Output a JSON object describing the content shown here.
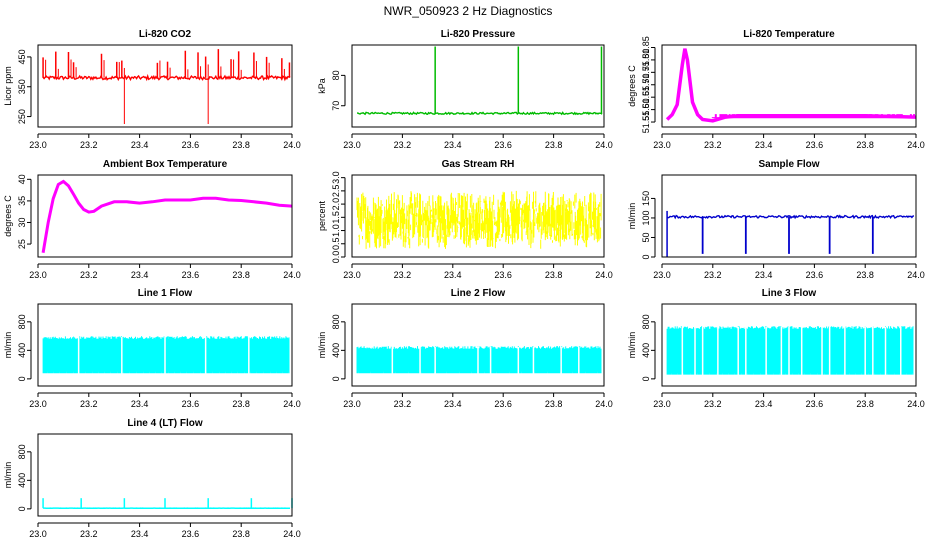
{
  "page_title": "NWR_050923  2 Hz Diagnostics",
  "chart_data": [
    {
      "type": "line",
      "title": "Li-820 CO2",
      "ylabel": "Licor ppm",
      "xlim": [
        23.0,
        24.0
      ],
      "ylim": [
        215,
        490
      ],
      "yticks": [
        250,
        350,
        450
      ],
      "y_tick_labels": [
        "250",
        "350",
        "450"
      ],
      "xticks": [
        23.0,
        23.2,
        23.4,
        23.6,
        23.8,
        24.0
      ],
      "x_tick_labels": [
        "23.0",
        "23.2",
        "23.4",
        "23.6",
        "23.8",
        "24.0"
      ],
      "color": "#ff0000",
      "baseline": 380,
      "spikes_up": [
        23.02,
        23.07,
        23.12,
        23.14,
        23.25,
        23.31,
        23.33,
        23.47,
        23.51,
        23.58,
        23.63,
        23.66,
        23.71,
        23.76,
        23.79,
        23.85,
        23.9,
        23.96,
        23.99
      ],
      "spikes_down": [
        23.34,
        23.67
      ],
      "spike_top": 480,
      "spike_bottom": 225
    },
    {
      "type": "line",
      "title": "Li-820 Pressure",
      "ylabel": "kPa",
      "xlim": [
        23.0,
        24.0
      ],
      "ylim": [
        63,
        90
      ],
      "yticks": [
        70,
        80
      ],
      "y_tick_labels": [
        "70",
        "80"
      ],
      "xticks": [
        23.0,
        23.2,
        23.4,
        23.6,
        23.8,
        24.0
      ],
      "x_tick_labels": [
        "23.0",
        "23.2",
        "23.4",
        "23.6",
        "23.8",
        "24.0"
      ],
      "color": "#00bb00",
      "baseline": 67.5,
      "spikes_up": [
        23.33,
        23.66,
        23.99
      ],
      "spike_top": 89.5
    },
    {
      "type": "line",
      "title": "Li-820 Temperature",
      "ylabel": "degrees C",
      "xlim": [
        23.0,
        24.0
      ],
      "ylim": [
        51.53,
        51.86
      ],
      "yticks": [
        51.55,
        51.6,
        51.65,
        51.7,
        51.75,
        51.8,
        51.85
      ],
      "y_tick_labels": [
        "51.55",
        "51.60",
        "51.65",
        "51.70",
        "51.75",
        "51.80",
        "51.85"
      ],
      "xticks": [
        23.0,
        23.2,
        23.4,
        23.6,
        23.8,
        24.0
      ],
      "x_tick_labels": [
        "23.0",
        "23.2",
        "23.4",
        "23.6",
        "23.8",
        "24.0"
      ],
      "color": "#ff00ff",
      "x": [
        23.02,
        23.04,
        23.06,
        23.08,
        23.09,
        23.1,
        23.12,
        23.14,
        23.16,
        23.2,
        23.25,
        23.3,
        23.4,
        23.6,
        23.8,
        24.0
      ],
      "y": [
        51.56,
        51.58,
        51.62,
        51.78,
        51.845,
        51.8,
        51.63,
        51.58,
        51.56,
        51.555,
        51.57,
        51.575,
        51.575,
        51.575,
        51.575,
        51.57
      ]
    },
    {
      "type": "line",
      "title": "Ambient Box Temperature",
      "ylabel": "degrees C",
      "xlim": [
        23.0,
        24.0
      ],
      "ylim": [
        22,
        41
      ],
      "yticks": [
        25,
        30,
        35,
        40
      ],
      "y_tick_labels": [
        "25",
        "30",
        "35",
        "40"
      ],
      "xticks": [
        23.0,
        23.2,
        23.4,
        23.6,
        23.8,
        24.0
      ],
      "x_tick_labels": [
        "23.0",
        "23.2",
        "23.4",
        "23.6",
        "23.8",
        "24.0"
      ],
      "color": "#ff00ff",
      "x": [
        23.02,
        23.04,
        23.06,
        23.08,
        23.1,
        23.12,
        23.14,
        23.16,
        23.18,
        23.2,
        23.22,
        23.25,
        23.3,
        23.35,
        23.4,
        23.45,
        23.5,
        23.55,
        23.6,
        23.65,
        23.7,
        23.75,
        23.8,
        23.85,
        23.9,
        23.95,
        24.0
      ],
      "y": [
        23,
        30,
        35.5,
        38.8,
        39.5,
        38.5,
        36.5,
        34.5,
        33,
        32.4,
        32.6,
        33.8,
        34.8,
        34.8,
        34.5,
        34.8,
        35.2,
        35.2,
        35.2,
        35.6,
        35.6,
        35.2,
        35.1,
        34.8,
        34.5,
        34,
        33.8
      ]
    },
    {
      "type": "line",
      "title": "Gas Stream RH",
      "ylabel": "percent",
      "xlim": [
        23.0,
        24.0
      ],
      "ylim": [
        0,
        3.1
      ],
      "yticks": [
        0,
        0.5,
        1.0,
        1.5,
        2.0,
        2.5,
        3.0
      ],
      "y_tick_labels": [
        "0.0",
        "0.5",
        "1.0",
        "1.5",
        "2.0",
        "2.5",
        "3.0"
      ],
      "xticks": [
        23.0,
        23.2,
        23.4,
        23.6,
        23.8,
        24.0
      ],
      "x_tick_labels": [
        "23.0",
        "23.2",
        "23.4",
        "23.6",
        "23.8",
        "24.0"
      ],
      "color": "#ffff00",
      "center": 1.4,
      "spread": 1.1
    },
    {
      "type": "line",
      "title": "Sample Flow",
      "ylabel": "ml/min",
      "xlim": [
        23.0,
        24.0
      ],
      "ylim": [
        0,
        210
      ],
      "yticks": [
        0,
        50,
        100,
        150
      ],
      "y_tick_labels": [
        "0",
        "50",
        "100",
        "150"
      ],
      "xticks": [
        23.0,
        23.2,
        23.4,
        23.6,
        23.8,
        24.0
      ],
      "x_tick_labels": [
        "23.0",
        "23.2",
        "23.4",
        "23.6",
        "23.8",
        "24.0"
      ],
      "color": "#0000cc",
      "baseline": 103,
      "drops": [
        23.16,
        23.33,
        23.5,
        23.66,
        23.83
      ],
      "drop_bottom": 8
    },
    {
      "type": "line",
      "title": "Line 1 Flow",
      "ylabel": "ml/min",
      "xlim": [
        23.0,
        24.0
      ],
      "ylim": [
        -100,
        1050
      ],
      "yticks": [
        0,
        400,
        800
      ],
      "y_tick_labels": [
        "0",
        "400",
        "800"
      ],
      "xticks": [
        23.0,
        23.2,
        23.4,
        23.6,
        23.8,
        24.0
      ],
      "x_tick_labels": [
        "23.0",
        "23.2",
        "23.4",
        "23.6",
        "23.8",
        "24.0"
      ],
      "color": "#00ffff",
      "band_low": 100,
      "band_high": 560,
      "gaps": [
        23.16,
        23.33,
        23.5,
        23.66,
        23.83
      ]
    },
    {
      "type": "line",
      "title": "Line 2 Flow",
      "ylabel": "ml/min",
      "xlim": [
        23.0,
        24.0
      ],
      "ylim": [
        -100,
        1050
      ],
      "yticks": [
        0,
        400,
        800
      ],
      "y_tick_labels": [
        "0",
        "400",
        "800"
      ],
      "xticks": [
        23.0,
        23.2,
        23.4,
        23.6,
        23.8,
        24.0
      ],
      "x_tick_labels": [
        "23.0",
        "23.2",
        "23.4",
        "23.6",
        "23.8",
        "24.0"
      ],
      "color": "#00ffff",
      "band_low": 100,
      "band_high": 420,
      "gaps": [
        23.16,
        23.27,
        23.33,
        23.5,
        23.55,
        23.66,
        23.72,
        23.83,
        23.9
      ]
    },
    {
      "type": "line",
      "title": "Line 3 Flow",
      "ylabel": "ml/min",
      "xlim": [
        23.0,
        24.0
      ],
      "ylim": [
        -100,
        1050
      ],
      "yticks": [
        0,
        400,
        800
      ],
      "y_tick_labels": [
        "0",
        "400",
        "800"
      ],
      "xticks": [
        23.0,
        23.2,
        23.4,
        23.6,
        23.8,
        24.0
      ],
      "x_tick_labels": [
        "23.0",
        "23.2",
        "23.4",
        "23.6",
        "23.8",
        "24.0"
      ],
      "color": "#00ffff",
      "band_low": 80,
      "band_high": 700,
      "gaps": [
        23.08,
        23.13,
        23.16,
        23.22,
        23.3,
        23.33,
        23.41,
        23.47,
        23.5,
        23.55,
        23.63,
        23.66,
        23.72,
        23.8,
        23.83,
        23.88,
        23.94
      ]
    },
    {
      "type": "line",
      "title": "Line 4 (LT) Flow",
      "ylabel": "ml/min",
      "xlim": [
        23.0,
        24.0
      ],
      "ylim": [
        -100,
        1050
      ],
      "yticks": [
        0,
        400,
        800
      ],
      "y_tick_labels": [
        "0",
        "400",
        "800"
      ],
      "xticks": [
        23.0,
        23.2,
        23.4,
        23.6,
        23.8,
        24.0
      ],
      "x_tick_labels": [
        "23.0",
        "23.2",
        "23.4",
        "23.6",
        "23.8",
        "24.0"
      ],
      "color": "#00ffff",
      "baseline": 10,
      "spikes_up": [
        23.02,
        23.17,
        23.34,
        23.5,
        23.67,
        23.84,
        24.0
      ],
      "spike_top": 150
    }
  ]
}
